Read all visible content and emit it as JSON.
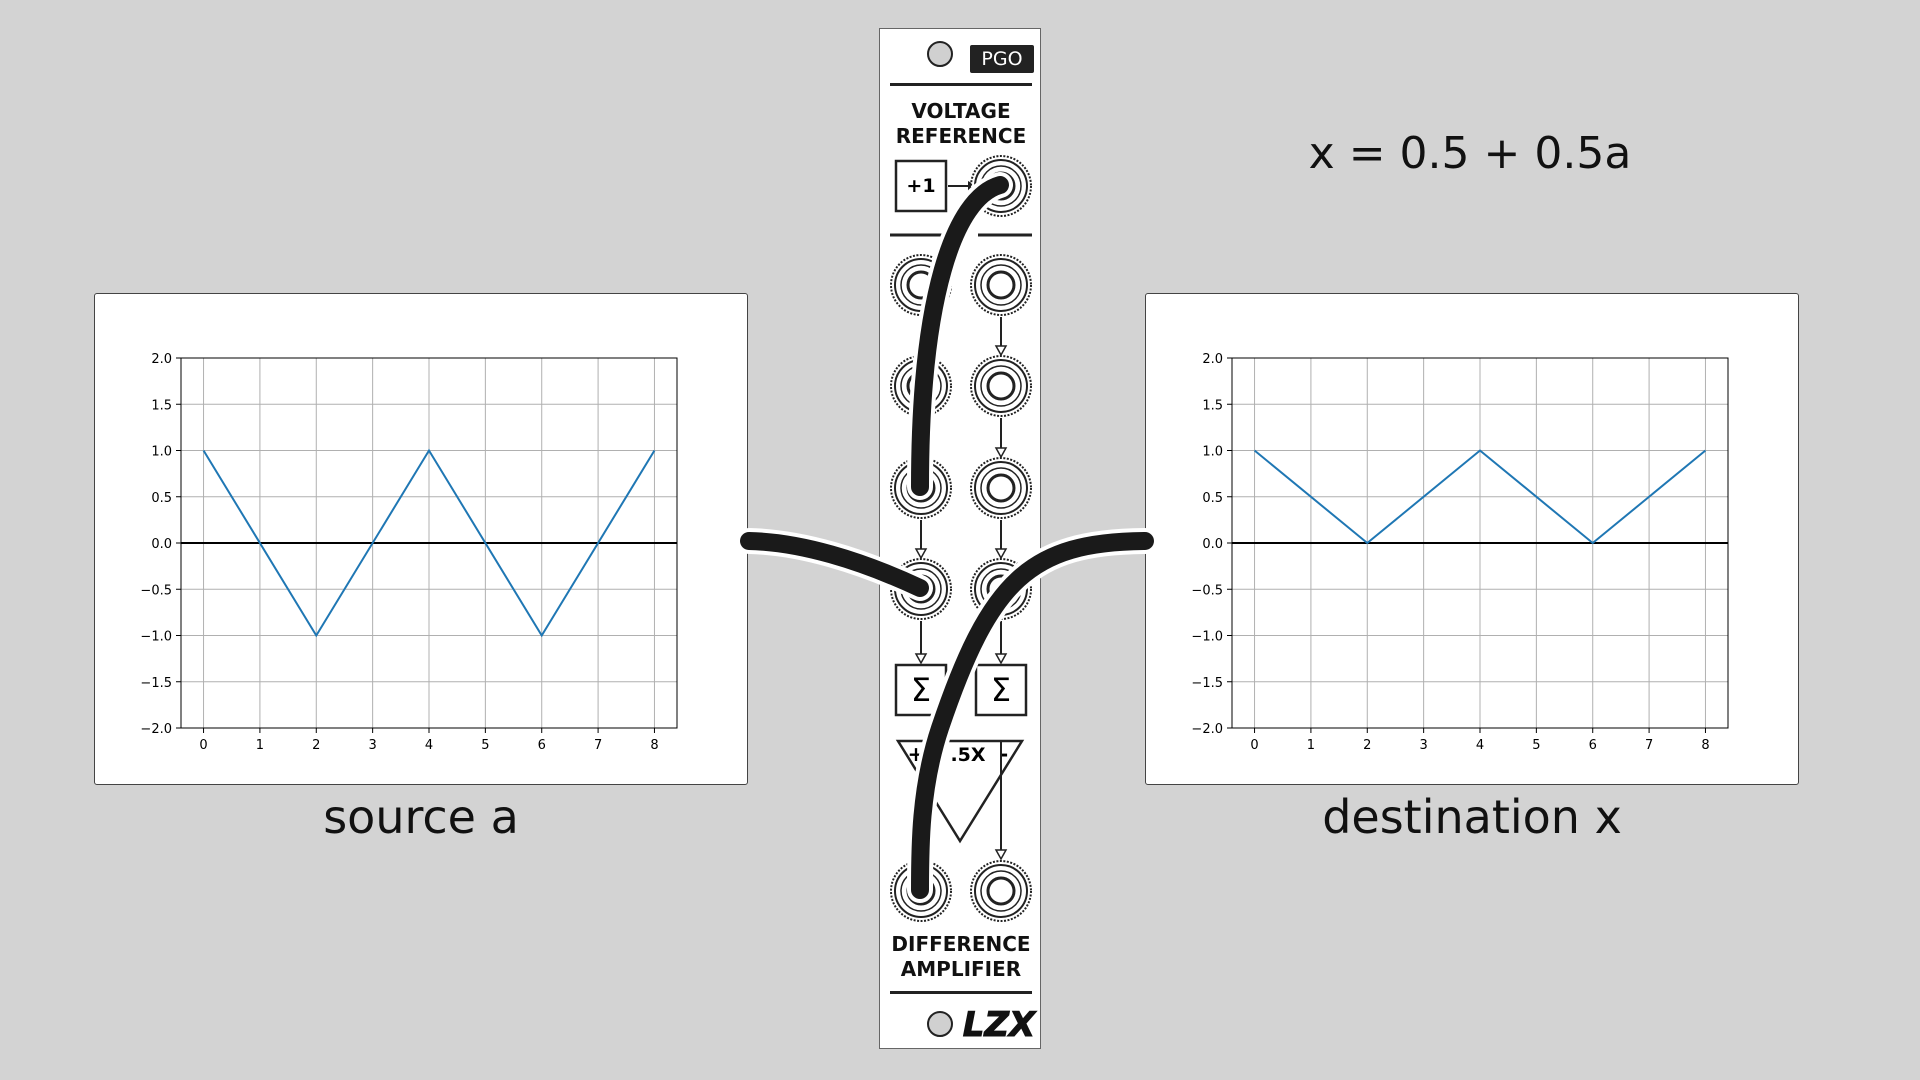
{
  "equation": "x = 0.5 + 0.5a",
  "module": {
    "brand": "PGO",
    "section_top": "VOLTAGE\nREFERENCE",
    "section_top_lines": [
      "VOLTAGE",
      "REFERENCE"
    ],
    "plus_one": "+1",
    "sigma": "Σ",
    "half_gain": ".5X",
    "plus_sign": "+",
    "minus_sign": "-",
    "section_bottom_lines": [
      "DIFFERENCE",
      "AMPLIFIER"
    ],
    "logo": "LZX",
    "colors": {
      "cable": "#1a1a1a",
      "panel": "#ffffff"
    }
  },
  "plots": {
    "source": {
      "caption": "source a"
    },
    "destination": {
      "caption": "destination x"
    }
  },
  "chart_data": [
    {
      "type": "line",
      "title": "",
      "xlabel": "",
      "ylabel": "",
      "x": [
        0,
        2,
        4,
        6,
        8
      ],
      "series": [
        {
          "values": [
            1.0,
            -1.0,
            1.0,
            -1.0,
            1.0
          ],
          "color": "#1f77b4"
        }
      ],
      "xlim": [
        -0.4,
        8.4
      ],
      "ylim": [
        -2.0,
        2.0
      ],
      "xticks": [
        "0",
        "1",
        "2",
        "3",
        "4",
        "5",
        "6",
        "7",
        "8"
      ],
      "yticks": [
        "2.0",
        "1.5",
        "1.0",
        "0.5",
        "0.0",
        "−0.5",
        "−1.0",
        "−1.5",
        "−2.0"
      ],
      "grid": true
    },
    {
      "type": "line",
      "title": "",
      "xlabel": "",
      "ylabel": "",
      "x": [
        0,
        2,
        4,
        6,
        8
      ],
      "series": [
        {
          "values": [
            1.0,
            0.0,
            1.0,
            0.0,
            1.0
          ],
          "color": "#1f77b4"
        }
      ],
      "xlim": [
        -0.4,
        8.4
      ],
      "ylim": [
        -2.0,
        2.0
      ],
      "xticks": [
        "0",
        "1",
        "2",
        "3",
        "4",
        "5",
        "6",
        "7",
        "8"
      ],
      "yticks": [
        "2.0",
        "1.5",
        "1.0",
        "0.5",
        "0.0",
        "−0.5",
        "−1.0",
        "−1.5",
        "−2.0"
      ],
      "grid": true
    }
  ]
}
